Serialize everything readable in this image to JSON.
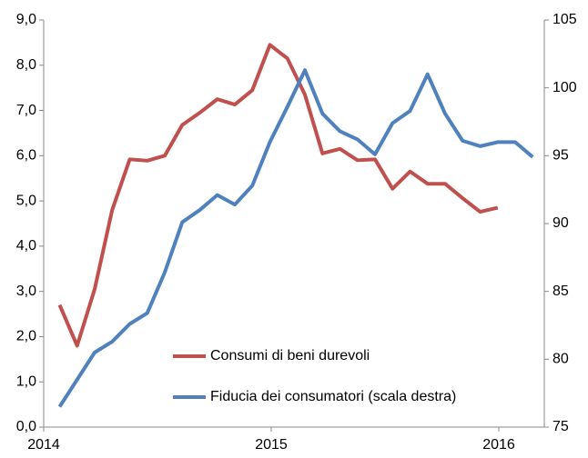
{
  "chart_data": {
    "type": "line",
    "x": [
      2014.07,
      2014.147,
      2014.224,
      2014.301,
      2014.378,
      2014.455,
      2014.532,
      2014.609,
      2014.686,
      2014.763,
      2014.84,
      2014.917,
      2014.994,
      2015.071,
      2015.148,
      2015.225,
      2015.302,
      2015.379,
      2015.456,
      2015.533,
      2015.61,
      2015.687,
      2015.764,
      2015.841,
      2015.918,
      2015.995,
      2016.072,
      2016.149
    ],
    "series": [
      {
        "name": "Consumi di beni durevoli",
        "color": "#c0504d",
        "values": [
          2.7,
          1.8,
          3.05,
          4.8,
          5.92,
          5.89,
          6.0,
          6.68,
          6.95,
          7.25,
          7.13,
          7.45,
          8.45,
          8.15,
          7.35,
          6.05,
          6.15,
          5.9,
          5.92,
          5.27,
          5.65,
          5.38,
          5.38,
          5.06,
          4.76,
          4.85,
          null,
          null
        ]
      },
      {
        "name": "Fiducia dei consumatori (scala destra)",
        "color": "#4f81bd",
        "axis": "y2",
        "values": [
          76.5,
          78.5,
          80.5,
          81.3,
          82.6,
          83.4,
          86.4,
          90.1,
          91.0,
          92.1,
          91.4,
          92.8,
          96.0,
          98.6,
          101.3,
          98.1,
          96.8,
          96.2,
          95.1,
          97.4,
          98.3,
          101.0,
          98.1,
          96.1,
          95.7,
          96.0,
          96.0,
          94.9
        ]
      }
    ],
    "xlim": [
      2014,
      2016.2
    ],
    "xticks": [
      2014,
      2015,
      2016
    ],
    "ylim": [
      0,
      9
    ],
    "yticks": [
      {
        "value": 0,
        "label": "0,0"
      },
      {
        "value": 1,
        "label": "1,0"
      },
      {
        "value": 2,
        "label": "2,0"
      },
      {
        "value": 3,
        "label": "3,0"
      },
      {
        "value": 4,
        "label": "4,0"
      },
      {
        "value": 5,
        "label": "5,0"
      },
      {
        "value": 6,
        "label": "6,0"
      },
      {
        "value": 7,
        "label": "7,0"
      },
      {
        "value": 8,
        "label": "8,0"
      },
      {
        "value": 9,
        "label": "9,0"
      }
    ],
    "y2lim": [
      75,
      105
    ],
    "y2ticks": [
      75,
      80,
      85,
      90,
      95,
      100,
      105
    ],
    "legend": "lower center",
    "grid": false
  }
}
